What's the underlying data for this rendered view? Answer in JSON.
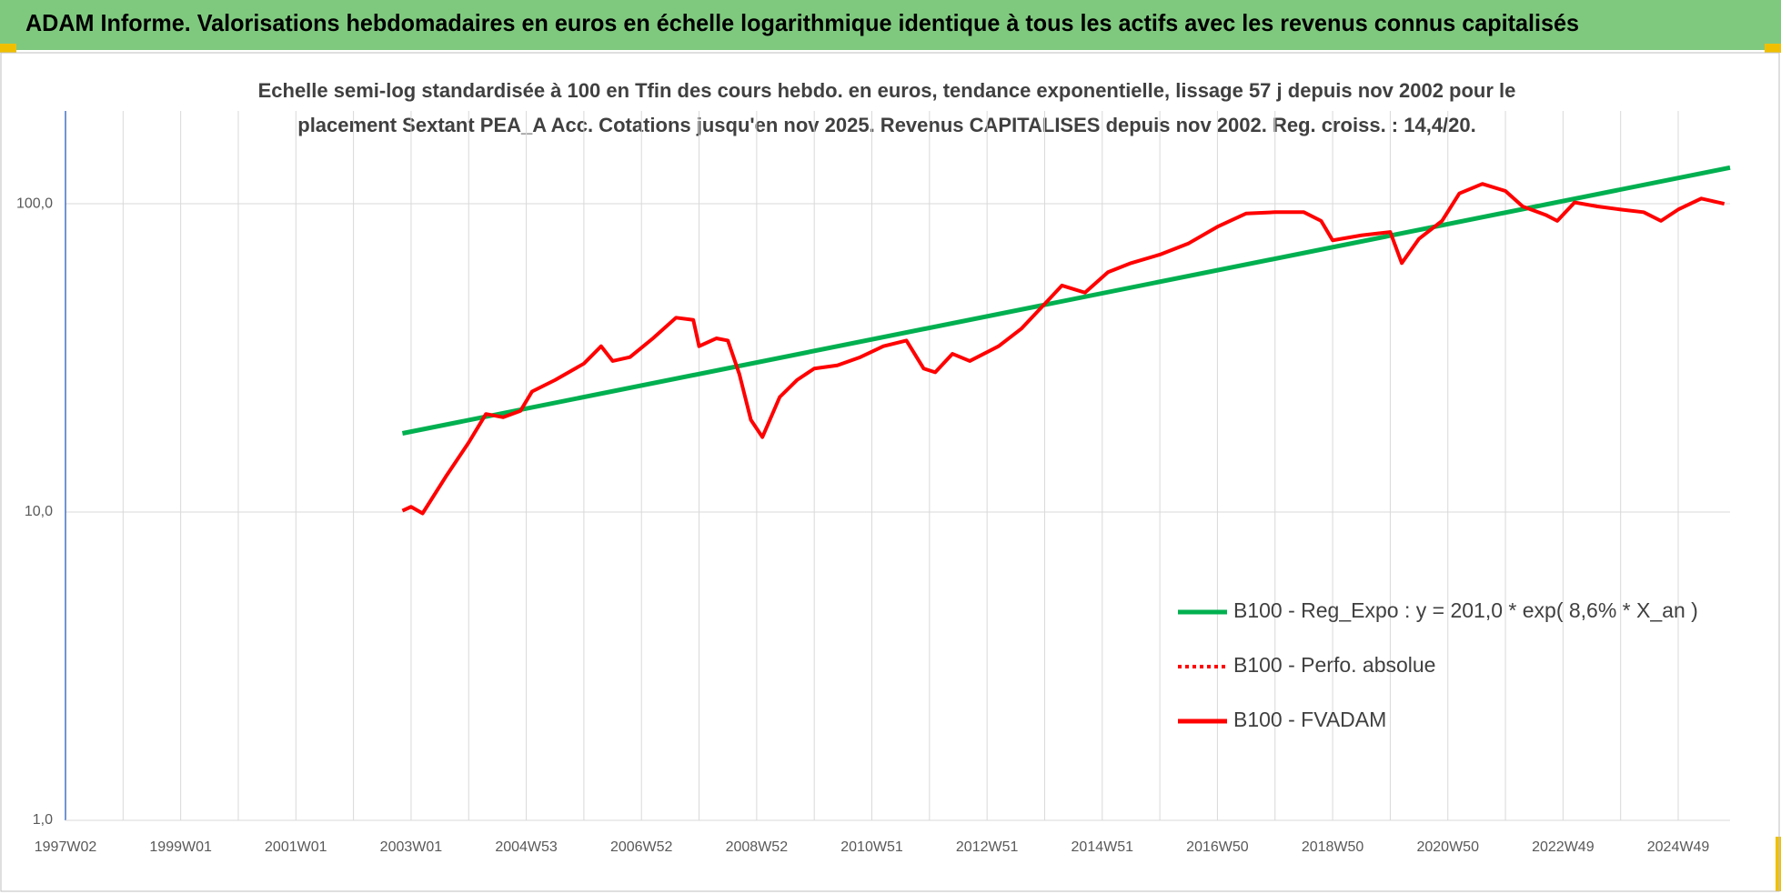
{
  "page_title": "ADAM Informe. Valorisations hebdomadaires en euros en échelle logarithmique identique à tous les actifs avec les revenus connus capitalisés",
  "chart_data": {
    "type": "line",
    "title": [
      "Echelle semi-log standardisée à 100 en Tfin des cours hebdo. en euros, tendance exponentielle, lissage 57 j depuis nov 2002 pour le",
      "placement Sextant PEA_A Acc. Cotations jusqu'en nov 2025. Revenus CAPITALISES depuis nov 2002. Reg. croiss. : 14,4/20."
    ],
    "log_y": true,
    "grid": true,
    "legend_position": "right",
    "xlim": [
      1997.0,
      2025.9
    ],
    "xticks": [
      {
        "value": 1997.0,
        "label": "1997W02"
      },
      {
        "value": 1999.0,
        "label": "1999W01"
      },
      {
        "value": 2001.0,
        "label": "2001W01"
      },
      {
        "value": 2003.0,
        "label": "2003W01"
      },
      {
        "value": 2005.0,
        "label": "2004W53"
      },
      {
        "value": 2007.0,
        "label": "2006W52"
      },
      {
        "value": 2009.0,
        "label": "2008W52"
      },
      {
        "value": 2011.0,
        "label": "2010W51"
      },
      {
        "value": 2013.0,
        "label": "2012W51"
      },
      {
        "value": 2015.0,
        "label": "2014W51"
      },
      {
        "value": 2017.0,
        "label": "2016W50"
      },
      {
        "value": 2019.0,
        "label": "2018W50"
      },
      {
        "value": 2021.0,
        "label": "2020W50"
      },
      {
        "value": 2023.0,
        "label": "2022W49"
      },
      {
        "value": 2025.0,
        "label": "2024W49"
      }
    ],
    "x_minor_grid": [
      1998,
      2000,
      2002,
      2004,
      2006,
      2008,
      2010,
      2012,
      2014,
      2016,
      2018,
      2020,
      2022,
      2024
    ],
    "ylim": [
      1,
      200
    ],
    "yticks": [
      {
        "value": 1,
        "label": "1,0"
      },
      {
        "value": 10,
        "label": "10,0"
      },
      {
        "value": 100,
        "label": "100,0"
      }
    ],
    "series": [
      {
        "name": "B100 - Reg_Expo : y = 201,0 * exp( 8,6% *  X_an )",
        "color": "#00b050",
        "dash": "solid",
        "x": [
          2002.85,
          2025.9
        ],
        "values": [
          18.0,
          131
        ]
      },
      {
        "name": "B100 - Perfo. absolue",
        "color": "#ff0000",
        "dash": "dotted",
        "x": [],
        "values": []
      },
      {
        "name": "B100 - FVADAM",
        "color": "#ff0000",
        "dash": "solid",
        "x": [
          2002.85,
          2003.0,
          2003.2,
          2003.6,
          2004.0,
          2004.3,
          2004.6,
          2004.9,
          2005.1,
          2005.5,
          2006.0,
          2006.3,
          2006.5,
          2006.8,
          2007.2,
          2007.6,
          2007.9,
          2008.0,
          2008.3,
          2008.5,
          2008.7,
          2008.9,
          2009.1,
          2009.4,
          2009.7,
          2010.0,
          2010.4,
          2010.8,
          2011.2,
          2011.6,
          2011.9,
          2012.1,
          2012.4,
          2012.7,
          2013.2,
          2013.6,
          2014.0,
          2014.3,
          2014.7,
          2015.1,
          2015.5,
          2016.0,
          2016.5,
          2017.0,
          2017.5,
          2018.0,
          2018.5,
          2018.8,
          2019.0,
          2019.5,
          2020.0,
          2020.2,
          2020.5,
          2020.9,
          2021.2,
          2021.6,
          2022.0,
          2022.3,
          2022.7,
          2022.9,
          2023.2,
          2023.6,
          2024.0,
          2024.4,
          2024.7,
          2025.0,
          2025.4,
          2025.8
        ],
        "values": [
          10.1,
          10.4,
          9.9,
          13,
          16.8,
          20.8,
          20.3,
          21.3,
          24.6,
          26.8,
          30.3,
          34.5,
          30.9,
          31.8,
          36.6,
          42.7,
          42,
          34.5,
          36.6,
          36,
          28,
          19.9,
          17.5,
          23.6,
          26.8,
          29.2,
          29.9,
          31.8,
          34.5,
          36,
          29.2,
          28.4,
          32.6,
          30.9,
          34.5,
          39.4,
          47.3,
          54.3,
          51.5,
          60,
          64.2,
          68.4,
          74.4,
          84.2,
          93.0,
          93.9,
          93.9,
          88,
          76.1,
          79,
          81.0,
          64.2,
          77,
          88,
          108,
          116,
          110,
          98,
          92.0,
          88,
          101,
          98,
          95.8,
          93.9,
          88,
          95.8,
          104,
          100
        ]
      }
    ]
  }
}
